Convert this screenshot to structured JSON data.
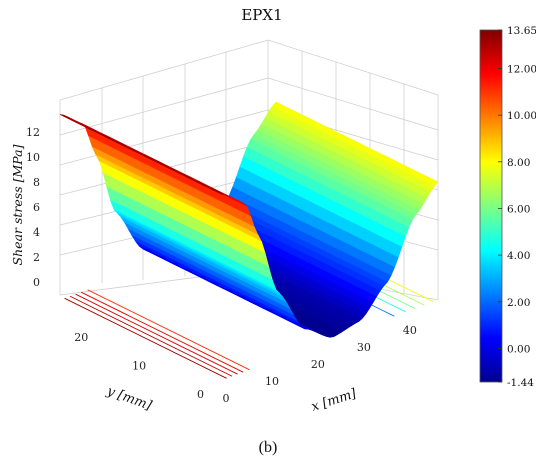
{
  "chart_data": {
    "type": "surface",
    "title": "EPX1",
    "caption": "(b)",
    "xlabel": "x [mm]",
    "ylabel": "y [mm]",
    "zlabel": "Shear stress [MPa]",
    "x_ticks": [
      "0",
      "10",
      "20",
      "30",
      "40"
    ],
    "y_ticks": [
      "0",
      "10",
      "20"
    ],
    "z_ticks": [
      "0",
      "2",
      "4",
      "6",
      "8",
      "10",
      "12"
    ],
    "xlim": [
      0,
      47
    ],
    "ylim": [
      0,
      28
    ],
    "zlim": [
      -1.44,
      13.65
    ],
    "colorbar": {
      "colormap": "jet",
      "min": -1.44,
      "max": 13.65,
      "ticks": [
        "13.65",
        "12.00",
        "10.00",
        "8.00",
        "6.00",
        "4.00",
        "2.00",
        "0.00",
        "-1.44"
      ],
      "tick_values": [
        13.65,
        12.0,
        10.0,
        8.0,
        6.0,
        4.0,
        2.0,
        0.0,
        -1.44
      ]
    },
    "surface_profile": {
      "description_x_mm": [
        0,
        5,
        8,
        12,
        18,
        24,
        30,
        36,
        42,
        47
      ],
      "stress_mpa": [
        13.4,
        12.0,
        9.0,
        4.0,
        0.2,
        -1.3,
        -0.8,
        1.5,
        6.0,
        8.0
      ]
    }
  }
}
